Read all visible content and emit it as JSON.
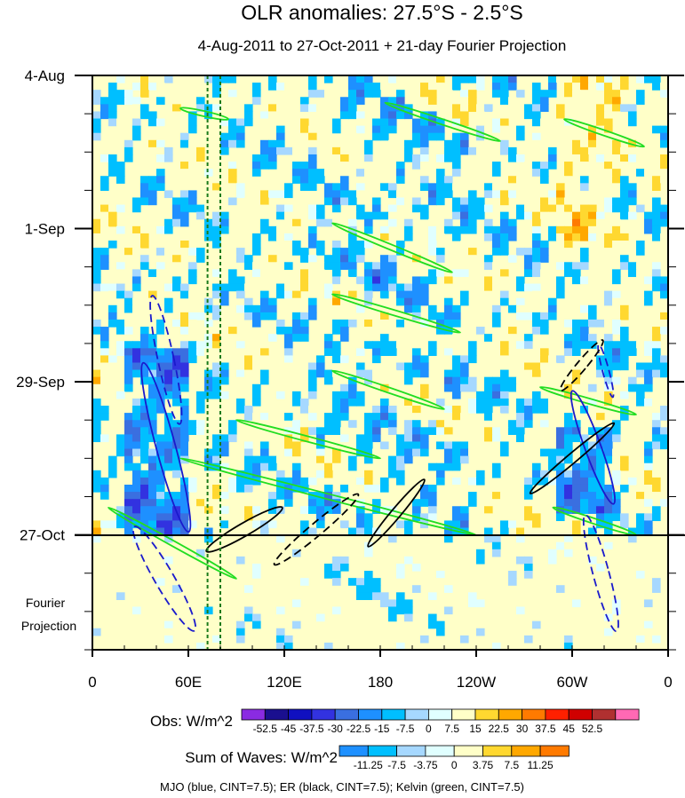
{
  "chart_data": {
    "type": "heatmap",
    "title": "OLR anomalies: 27.5°S - 2.5°S",
    "subtitle": "4-Aug-2011 to 27-Oct-2011 + 21-day Fourier Projection",
    "x_ticks": [
      "0",
      "60E",
      "120E",
      "180",
      "120W",
      "60W",
      "0"
    ],
    "x_tick_values": [
      0,
      60,
      120,
      180,
      240,
      300,
      360
    ],
    "y_ticks": [
      "4-Aug",
      "1-Sep",
      "29-Sep",
      "27-Oct"
    ],
    "y_tick_values": [
      0,
      28,
      56,
      84
    ],
    "y_range": [
      0,
      105
    ],
    "fourier_label": [
      "Fourier",
      "Projection"
    ],
    "obs_colorbar": {
      "label": "Obs: W/m^2",
      "ticks": [
        "-52.5",
        "-45",
        "-37.5",
        "-30",
        "-22.5",
        "-15",
        "-7.5",
        "0",
        "7.5",
        "15",
        "22.5",
        "30",
        "37.5",
        "45",
        "52.5"
      ],
      "colors": [
        "#8a2be2",
        "#1a0f8f",
        "#1010c0",
        "#3232e0",
        "#3a6fe0",
        "#1e90ff",
        "#00bfff",
        "#a6d8ff",
        "#e0ffff",
        "#ffffc8",
        "#ffd830",
        "#ffa800",
        "#ff7a00",
        "#ff2000",
        "#d00000",
        "#b03030",
        "#ff69b4"
      ]
    },
    "waves_colorbar": {
      "label": "Sum of Waves: W/m^2",
      "ticks": [
        "-11.25",
        "-7.5",
        "-3.75",
        "0",
        "3.75",
        "7.5",
        "11.25"
      ],
      "colors": [
        "#1e90ff",
        "#00bfff",
        "#a6d8ff",
        "#e0ffff",
        "#ffffc8",
        "#ffd830",
        "#ffa800",
        "#ff7a00"
      ]
    },
    "footer": "MJO (blue, CINT=7.5); ER (black, CINT=7.5); Kelvin (green, CINT=7.5)",
    "mjo_contours": [
      {
        "lon": 46,
        "day": 52,
        "rx": 5,
        "ry": 12,
        "angle": -12,
        "sign": "negative"
      },
      {
        "lon": 46,
        "day": 68,
        "rx": 6,
        "ry": 16,
        "angle": -15,
        "sign": "positive"
      },
      {
        "lon": 45,
        "day": 92,
        "rx": 6,
        "ry": 11,
        "angle": -30,
        "sign": "negative"
      },
      {
        "lon": 313,
        "day": 68,
        "rx": 5,
        "ry": 11,
        "angle": -20,
        "sign": "positive"
      },
      {
        "lon": 318,
        "day": 91,
        "rx": 5,
        "ry": 11,
        "angle": -15,
        "sign": "negative"
      },
      {
        "lon": 321,
        "day": 54,
        "rx": 2,
        "ry": 5,
        "angle": -15,
        "sign": "negative"
      }
    ],
    "er_contours": [
      {
        "lon": 95,
        "day": 83,
        "rx": 4,
        "ry": 8,
        "angle": 60,
        "sign": "positive"
      },
      {
        "lon": 140,
        "day": 83,
        "rx": 4,
        "ry": 10,
        "angle": 50,
        "sign": "negative"
      },
      {
        "lon": 190,
        "day": 80,
        "rx": 3,
        "ry": 8,
        "angle": 40,
        "sign": "positive"
      },
      {
        "lon": 300,
        "day": 70,
        "rx": 3,
        "ry": 10,
        "angle": 50,
        "sign": "positive"
      },
      {
        "lon": 306,
        "day": 53,
        "rx": 3,
        "ry": 6,
        "angle": 40,
        "sign": "negative"
      }
    ],
    "kelvin_bands": [
      {
        "lon0": 55,
        "day0": 6,
        "lon1": 85,
        "day1": 8
      },
      {
        "lon0": 183,
        "day0": 5,
        "lon1": 255,
        "day1": 12
      },
      {
        "lon0": 150,
        "day0": 27,
        "lon1": 225,
        "day1": 36
      },
      {
        "lon0": 150,
        "day0": 40,
        "lon1": 230,
        "day1": 47
      },
      {
        "lon0": 150,
        "day0": 54,
        "lon1": 220,
        "day1": 61
      },
      {
        "lon0": 10,
        "day0": 79,
        "lon1": 90,
        "day1": 92
      },
      {
        "lon0": 55,
        "day0": 70,
        "lon1": 240,
        "day1": 84
      },
      {
        "lon0": 90,
        "day0": 63,
        "lon1": 180,
        "day1": 70
      },
      {
        "lon0": 295,
        "day0": 8,
        "lon1": 345,
        "day1": 13
      },
      {
        "lon0": 280,
        "day0": 57,
        "lon1": 340,
        "day1": 62
      },
      {
        "lon0": 288,
        "day0": 79,
        "lon1": 340,
        "day1": 84
      }
    ]
  }
}
